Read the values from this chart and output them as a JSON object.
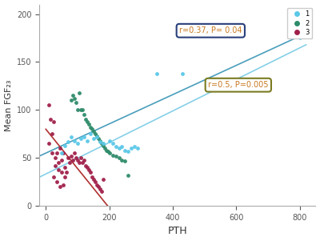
{
  "title": "",
  "xlabel": "PTH",
  "ylabel": "Mean FGF₂₃",
  "xlim": [
    -20,
    850
  ],
  "ylim": [
    0,
    210
  ],
  "xticks": [
    0,
    200,
    400,
    600,
    800
  ],
  "yticks": [
    0,
    50,
    100,
    150,
    200
  ],
  "group1_color": "#5bc8e8",
  "group2_color": "#2e8b6a",
  "group3_color": "#a0204a",
  "line1_color": "#85d0e8",
  "line2_color": "#4a9ebc",
  "line3_color": "#b03030",
  "annotation1_text": "r=0.37, P= 0.04",
  "annotation2_text": "r=0.5, P=0.005",
  "annotation_text_color": "#c87820",
  "annotation1_box_edgecolor": "#2a3f7a",
  "annotation2_box_edgecolor": "#7a7a20",
  "legend_labels": [
    "1",
    "2",
    "3"
  ],
  "group1_pts": [
    [
      50,
      55
    ],
    [
      60,
      63
    ],
    [
      70,
      67
    ],
    [
      80,
      72
    ],
    [
      90,
      68
    ],
    [
      100,
      65
    ],
    [
      110,
      70
    ],
    [
      120,
      72
    ],
    [
      130,
      68
    ],
    [
      140,
      75
    ],
    [
      150,
      70
    ],
    [
      160,
      72
    ],
    [
      170,
      67
    ],
    [
      180,
      65
    ],
    [
      200,
      68
    ],
    [
      210,
      65
    ],
    [
      220,
      62
    ],
    [
      230,
      60
    ],
    [
      240,
      62
    ],
    [
      250,
      58
    ],
    [
      260,
      57
    ],
    [
      270,
      60
    ],
    [
      280,
      62
    ],
    [
      290,
      60
    ],
    [
      350,
      138
    ],
    [
      430,
      138
    ],
    [
      800,
      175
    ]
  ],
  "group2_pts": [
    [
      80,
      110
    ],
    [
      85,
      115
    ],
    [
      90,
      112
    ],
    [
      95,
      108
    ],
    [
      100,
      100
    ],
    [
      105,
      118
    ],
    [
      110,
      100
    ],
    [
      115,
      100
    ],
    [
      120,
      95
    ],
    [
      125,
      90
    ],
    [
      130,
      88
    ],
    [
      135,
      85
    ],
    [
      140,
      82
    ],
    [
      145,
      80
    ],
    [
      150,
      78
    ],
    [
      155,
      75
    ],
    [
      160,
      73
    ],
    [
      165,
      70
    ],
    [
      170,
      68
    ],
    [
      175,
      65
    ],
    [
      180,
      63
    ],
    [
      185,
      60
    ],
    [
      190,
      58
    ],
    [
      195,
      57
    ],
    [
      200,
      55
    ],
    [
      210,
      53
    ],
    [
      220,
      52
    ],
    [
      230,
      50
    ],
    [
      240,
      48
    ],
    [
      250,
      47
    ],
    [
      260,
      32
    ]
  ],
  "group3_pts": [
    [
      10,
      105
    ],
    [
      15,
      90
    ],
    [
      20,
      75
    ],
    [
      25,
      88
    ],
    [
      30,
      50
    ],
    [
      35,
      55
    ],
    [
      40,
      45
    ],
    [
      45,
      60
    ],
    [
      50,
      48
    ],
    [
      55,
      55
    ],
    [
      60,
      40
    ],
    [
      65,
      35
    ],
    [
      70,
      50
    ],
    [
      75,
      45
    ],
    [
      80,
      52
    ],
    [
      85,
      48
    ],
    [
      90,
      55
    ],
    [
      95,
      50
    ],
    [
      100,
      48
    ],
    [
      105,
      45
    ],
    [
      110,
      50
    ],
    [
      115,
      45
    ],
    [
      120,
      48
    ],
    [
      125,
      42
    ],
    [
      130,
      40
    ],
    [
      135,
      38
    ],
    [
      140,
      35
    ],
    [
      145,
      30
    ],
    [
      150,
      28
    ],
    [
      155,
      25
    ],
    [
      160,
      22
    ],
    [
      165,
      20
    ],
    [
      170,
      18
    ],
    [
      175,
      15
    ],
    [
      180,
      28
    ],
    [
      10,
      65
    ],
    [
      20,
      55
    ],
    [
      30,
      42
    ],
    [
      40,
      38
    ],
    [
      50,
      35
    ],
    [
      60,
      30
    ],
    [
      25,
      30
    ],
    [
      35,
      25
    ],
    [
      45,
      20
    ],
    [
      55,
      22
    ]
  ],
  "line1_x": [
    -20,
    820
  ],
  "line1_y": [
    30,
    168
  ],
  "line2_x": [
    -20,
    820
  ],
  "line2_y": [
    52,
    180
  ],
  "line3_x": [
    0,
    195
  ],
  "line3_y": [
    80,
    0
  ],
  "background_color": "#ffffff"
}
